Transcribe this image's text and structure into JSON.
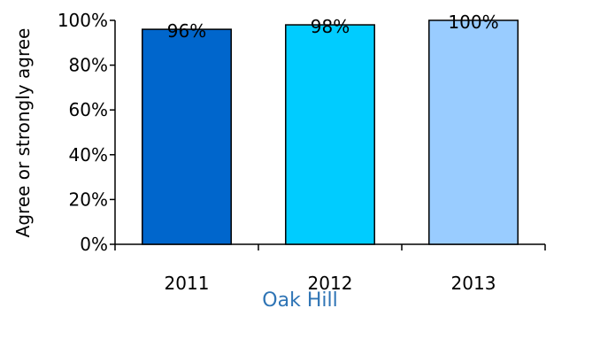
{
  "chart_data": {
    "type": "bar",
    "categories": [
      "2011",
      "2012",
      "2013"
    ],
    "values": [
      96,
      98,
      100
    ],
    "data_labels": [
      "96%",
      "98%",
      "100%"
    ],
    "colors": [
      "#0066cc",
      "#00ccff",
      "#99ccff"
    ],
    "title": "",
    "xlabel": "Oak Hill",
    "ylabel": "Agree or strongly agree",
    "ylim": [
      0,
      100
    ],
    "yticks": [
      0,
      20,
      40,
      60,
      80,
      100
    ],
    "ytick_labels": [
      "0%",
      "20%",
      "40%",
      "60%",
      "80%",
      "100%"
    ],
    "grid": false,
    "legend": "none"
  }
}
